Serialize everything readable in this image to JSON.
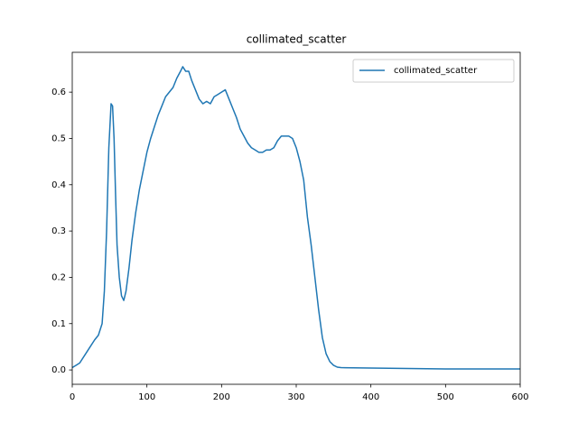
{
  "chart_data": {
    "type": "line",
    "title": "collimated_scatter",
    "x": [
      0,
      5,
      10,
      20,
      30,
      35,
      40,
      43,
      46,
      49,
      52,
      54,
      56,
      58,
      60,
      63,
      66,
      69,
      72,
      76,
      80,
      85,
      90,
      95,
      100,
      105,
      110,
      115,
      120,
      125,
      130,
      135,
      140,
      145,
      148,
      152,
      156,
      160,
      165,
      170,
      175,
      180,
      185,
      190,
      195,
      200,
      205,
      210,
      215,
      220,
      225,
      230,
      235,
      240,
      245,
      250,
      255,
      260,
      265,
      270,
      275,
      280,
      285,
      290,
      295,
      300,
      305,
      310,
      315,
      320,
      325,
      330,
      335,
      340,
      345,
      350,
      355,
      360,
      400,
      450,
      500,
      550,
      600
    ],
    "series": [
      {
        "name": "collimated_scatter",
        "color": "#1f77b4",
        "values": [
          0.005,
          0.01,
          0.015,
          0.04,
          0.065,
          0.075,
          0.1,
          0.17,
          0.3,
          0.48,
          0.575,
          0.57,
          0.5,
          0.38,
          0.27,
          0.2,
          0.16,
          0.15,
          0.17,
          0.22,
          0.28,
          0.34,
          0.39,
          0.43,
          0.47,
          0.5,
          0.525,
          0.55,
          0.57,
          0.59,
          0.6,
          0.61,
          0.63,
          0.645,
          0.655,
          0.645,
          0.645,
          0.625,
          0.605,
          0.585,
          0.575,
          0.58,
          0.575,
          0.59,
          0.595,
          0.6,
          0.605,
          0.585,
          0.565,
          0.545,
          0.52,
          0.505,
          0.49,
          0.48,
          0.475,
          0.47,
          0.47,
          0.475,
          0.475,
          0.48,
          0.495,
          0.505,
          0.505,
          0.505,
          0.5,
          0.48,
          0.45,
          0.41,
          0.33,
          0.27,
          0.2,
          0.13,
          0.07,
          0.035,
          0.018,
          0.01,
          0.006,
          0.005,
          0.004,
          0.003,
          0.002,
          0.002,
          0.002
        ]
      }
    ],
    "xlim": [
      0,
      600
    ],
    "xticks": [
      0,
      100,
      200,
      300,
      400,
      500,
      600
    ],
    "ylim": [
      -0.031,
      0.686
    ],
    "yticks": [
      {
        "value": 0,
        "label": "0.0"
      },
      {
        "value": 0.1,
        "label": "0.1"
      },
      {
        "value": 0.2,
        "label": "0.2"
      },
      {
        "value": 0.3,
        "label": "0.3"
      },
      {
        "value": 0.4,
        "label": "0.4"
      },
      {
        "value": 0.5,
        "label": "0.5"
      },
      {
        "value": 0.6,
        "label": "0.6"
      }
    ],
    "legend": "upper right"
  }
}
